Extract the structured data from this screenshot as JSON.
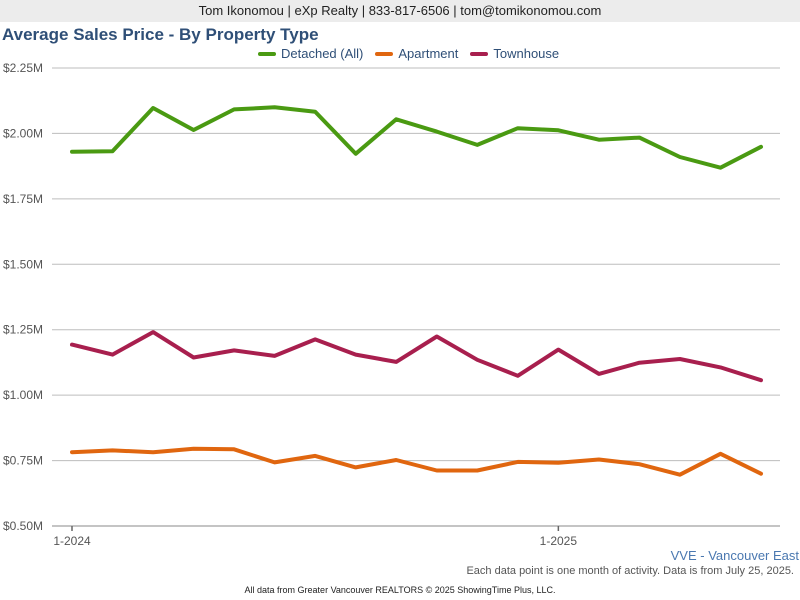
{
  "header": {
    "contact": "Tom Ikonomou | eXp Realty | 833-817-6506 | tom@tomikonomou.com"
  },
  "region_label": "VVE - Vancouver East",
  "note": "Each data point is one month of activity. Data is from July 25, 2025.",
  "footer": "All data from Greater Vancouver REALTORS © 2025 ShowingTime Plus, LLC.",
  "chart_data": {
    "type": "line",
    "title": "Average Sales Price - By Property Type",
    "xlabel": "",
    "ylabel": "",
    "x": [
      "2024-01",
      "2024-02",
      "2024-03",
      "2024-04",
      "2024-05",
      "2024-06",
      "2024-07",
      "2024-08",
      "2024-09",
      "2024-10",
      "2024-11",
      "2024-12",
      "2025-01",
      "2025-02",
      "2025-03",
      "2025-04",
      "2025-05",
      "2025-06"
    ],
    "x_tick_labels": [
      "1-2024",
      "1-2025"
    ],
    "ylim": [
      500000,
      2250000
    ],
    "y_ticks": [
      500000,
      750000,
      1000000,
      1250000,
      1500000,
      1750000,
      2000000,
      2250000
    ],
    "y_tick_labels": [
      "$0.50M",
      "$0.75M",
      "$1.00M",
      "$1.25M",
      "$1.50M",
      "$1.75M",
      "$2.00M",
      "$2.25M"
    ],
    "grid": true,
    "legend_position": "top-center",
    "series": [
      {
        "name": "Detached (All)",
        "color": "#4a9a12",
        "values": [
          1930000,
          1932000,
          2097000,
          2013000,
          2092000,
          2100000,
          2083000,
          1922000,
          2054000,
          2007000,
          1956000,
          2020000,
          2012000,
          1976000,
          1984000,
          1910000,
          1869000,
          1949000
        ]
      },
      {
        "name": "Apartment",
        "color": "#e0660f",
        "values": [
          782000,
          789000,
          782000,
          795000,
          793000,
          743000,
          768000,
          724000,
          752000,
          712000,
          712000,
          745000,
          742000,
          754000,
          736000,
          696000,
          776000,
          700000
        ]
      },
      {
        "name": "Townhouse",
        "color": "#a81f4e",
        "values": [
          1193000,
          1155000,
          1241000,
          1144000,
          1171000,
          1150000,
          1213000,
          1155000,
          1127000,
          1224000,
          1135000,
          1074000,
          1174000,
          1081000,
          1124000,
          1138000,
          1106000,
          1057000
        ]
      }
    ]
  }
}
